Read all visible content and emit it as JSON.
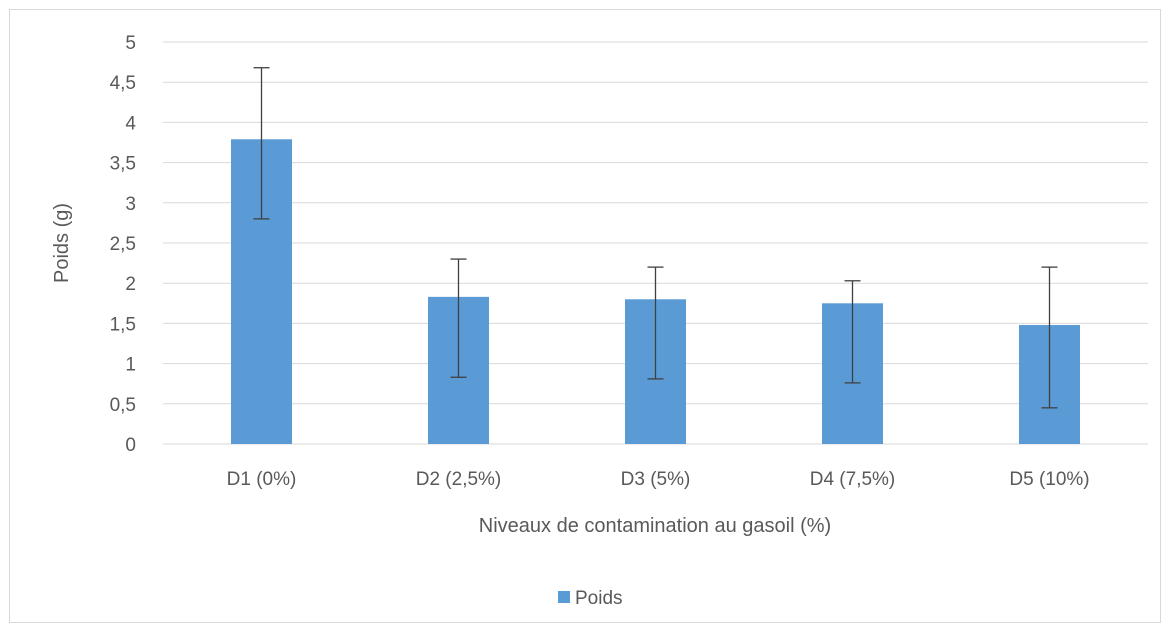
{
  "chart_data": {
    "type": "bar",
    "categories": [
      "D1 (0%)",
      "D2 (2,5%)",
      "D3 (5%)",
      "D4 (7,5%)",
      "D5 (10%)"
    ],
    "series": [
      {
        "name": "Poids",
        "values": [
          3.79,
          1.83,
          1.8,
          1.75,
          1.48
        ],
        "error_low": [
          2.8,
          0.83,
          0.81,
          0.76,
          0.45
        ],
        "error_high": [
          4.68,
          2.3,
          2.2,
          2.03,
          2.2
        ],
        "color": "#5b9bd5"
      }
    ],
    "xlabel": "Niveaux de contamination au gasoil (%)",
    "ylabel": "Poids (g)",
    "ylim": [
      0,
      5
    ],
    "yticks": [
      0,
      0.5,
      1,
      1.5,
      2,
      2.5,
      3,
      3.5,
      4,
      4.5,
      5
    ],
    "ytick_labels": [
      "0",
      "0,5",
      "1",
      "1,5",
      "2",
      "2,5",
      "3",
      "3,5",
      "4",
      "4,5",
      "5"
    ],
    "grid": true,
    "legend": "bottom"
  }
}
